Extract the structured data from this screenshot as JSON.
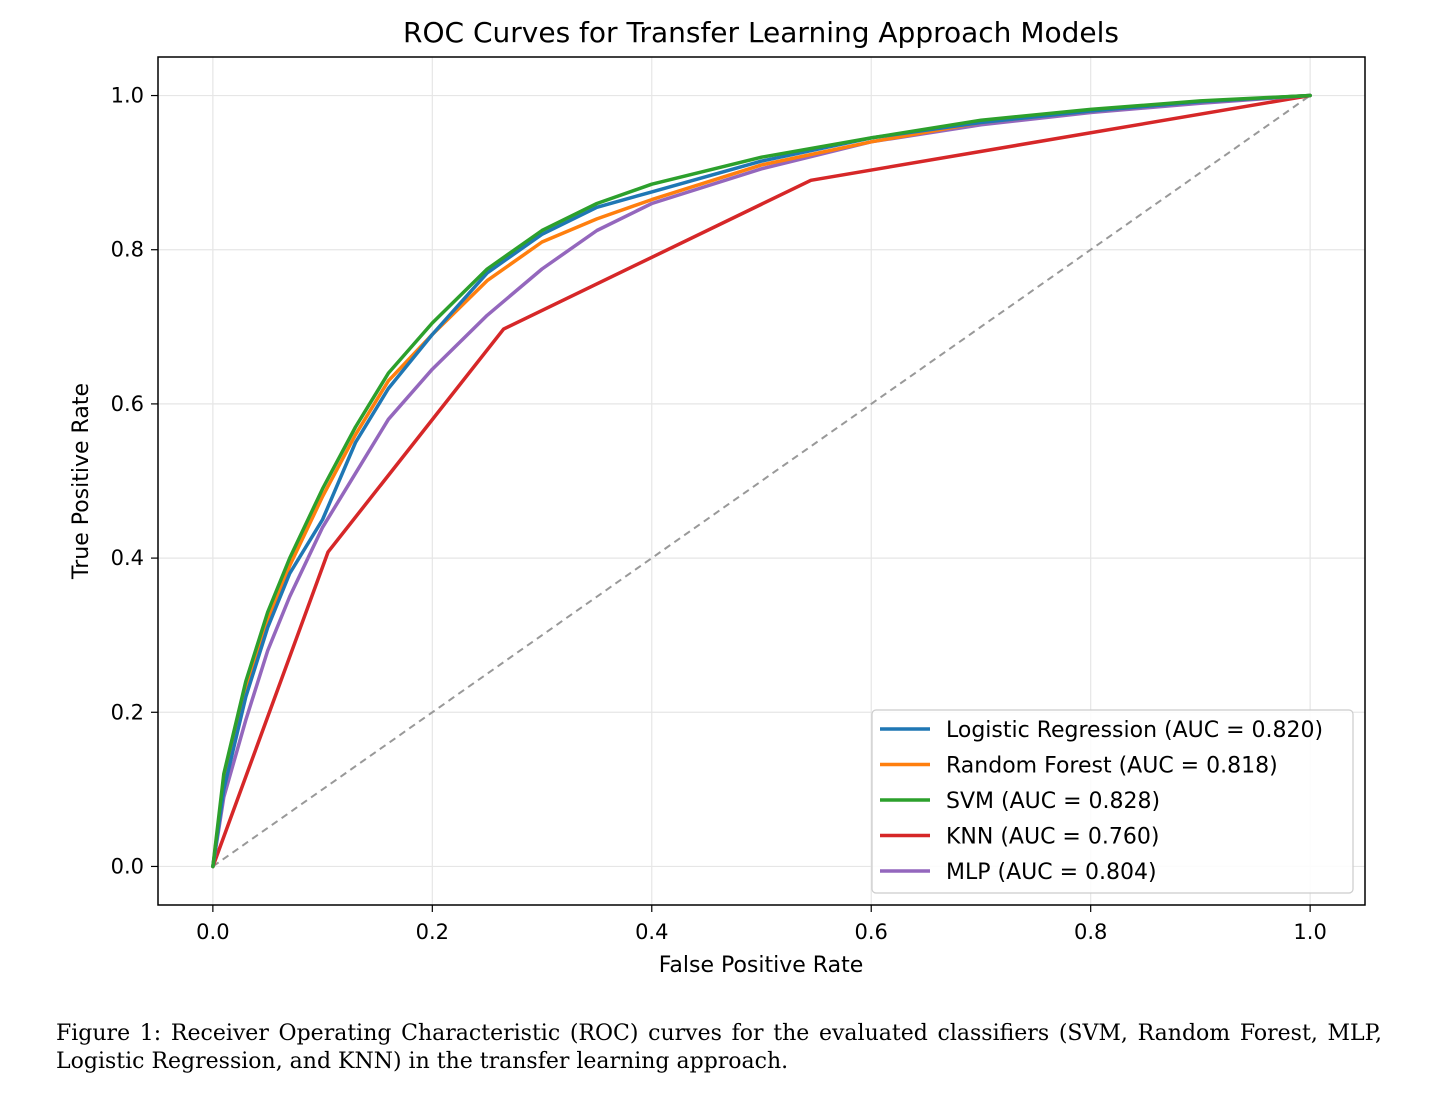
{
  "chart_data": {
    "type": "line",
    "title": "ROC Curves for Transfer Learning Approach Models",
    "xlabel": "False Positive Rate",
    "ylabel": "True Positive Rate",
    "xlim": [
      -0.05,
      1.05
    ],
    "ylim": [
      -0.05,
      1.05
    ],
    "xticks": [
      "0.0",
      "0.2",
      "0.4",
      "0.6",
      "0.8",
      "1.0"
    ],
    "yticks": [
      "0.0",
      "0.2",
      "0.4",
      "0.6",
      "0.8",
      "1.0"
    ],
    "grid": true,
    "legend_position": "lower-right",
    "series": [
      {
        "name": "Logistic Regression (AUC = 0.820)",
        "color": "#1f77b4",
        "x": [
          0,
          0.01,
          0.03,
          0.05,
          0.07,
          0.1,
          0.13,
          0.16,
          0.2,
          0.25,
          0.3,
          0.35,
          0.4,
          0.5,
          0.6,
          0.7,
          0.8,
          0.9,
          1.0
        ],
        "y": [
          0,
          0.1,
          0.22,
          0.31,
          0.38,
          0.45,
          0.55,
          0.62,
          0.69,
          0.77,
          0.82,
          0.855,
          0.875,
          0.915,
          0.945,
          0.965,
          0.98,
          0.992,
          1.0
        ]
      },
      {
        "name": "Random Forest (AUC = 0.818)",
        "color": "#ff7f0e",
        "x": [
          0,
          0.01,
          0.03,
          0.05,
          0.07,
          0.1,
          0.13,
          0.16,
          0.2,
          0.25,
          0.3,
          0.35,
          0.4,
          0.5,
          0.6,
          0.7,
          0.8,
          0.9,
          1.0
        ],
        "y": [
          0,
          0.11,
          0.23,
          0.32,
          0.39,
          0.48,
          0.56,
          0.63,
          0.69,
          0.76,
          0.81,
          0.84,
          0.865,
          0.91,
          0.94,
          0.965,
          0.98,
          0.992,
          1.0
        ]
      },
      {
        "name": "SVM (AUC = 0.828)",
        "color": "#2ca02c",
        "x": [
          0,
          0.01,
          0.03,
          0.05,
          0.07,
          0.1,
          0.13,
          0.16,
          0.2,
          0.25,
          0.3,
          0.35,
          0.4,
          0.5,
          0.6,
          0.7,
          0.8,
          0.9,
          1.0
        ],
        "y": [
          0,
          0.12,
          0.24,
          0.33,
          0.4,
          0.49,
          0.57,
          0.64,
          0.705,
          0.775,
          0.825,
          0.86,
          0.885,
          0.92,
          0.945,
          0.968,
          0.982,
          0.993,
          1.0
        ]
      },
      {
        "name": "KNN (AUC = 0.760)",
        "color": "#d62728",
        "x": [
          0,
          0.105,
          0.265,
          0.545,
          1.0
        ],
        "y": [
          0,
          0.408,
          0.697,
          0.89,
          1.0
        ]
      },
      {
        "name": "MLP (AUC = 0.804)",
        "color": "#9467bd",
        "x": [
          0,
          0.01,
          0.03,
          0.05,
          0.07,
          0.1,
          0.13,
          0.16,
          0.2,
          0.25,
          0.3,
          0.35,
          0.4,
          0.5,
          0.6,
          0.7,
          0.8,
          0.9,
          1.0
        ],
        "y": [
          0,
          0.09,
          0.19,
          0.28,
          0.35,
          0.44,
          0.51,
          0.58,
          0.645,
          0.715,
          0.775,
          0.825,
          0.86,
          0.905,
          0.94,
          0.962,
          0.978,
          0.99,
          1.0
        ]
      }
    ],
    "reference_line": {
      "x": [
        0,
        1
      ],
      "y": [
        0,
        1
      ],
      "color": "#999999"
    }
  },
  "caption": "Figure 1: Receiver Operating Characteristic (ROC) curves for the evaluated classifiers (SVM, Random Forest, MLP, Logistic Regression, and KNN) in the transfer learning approach."
}
